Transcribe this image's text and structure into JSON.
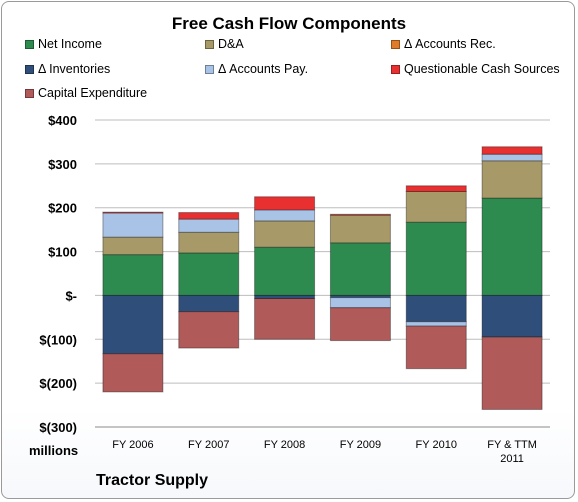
{
  "chart_data": {
    "type": "bar",
    "stacked": true,
    "title": "Free Cash Flow Components",
    "categories": [
      "FY 2006",
      "FY 2007",
      "FY 2008",
      "FY 2009",
      "FY 2010",
      "FY & TTM\n2011"
    ],
    "series": [
      {
        "name": "Net Income",
        "color": "#2e8b4f",
        "values": [
          93,
          97,
          110,
          120,
          167,
          222
        ]
      },
      {
        "name": "D&A",
        "color": "#a89968",
        "values": [
          40,
          47,
          60,
          63,
          70,
          85
        ]
      },
      {
        "name": "Δ Accounts Rec.",
        "color": "#e07b2a",
        "values": [
          0,
          0,
          0,
          0,
          0,
          0
        ]
      },
      {
        "name": "Δ Inventories",
        "color": "#2f4f7a",
        "values": [
          -133,
          -37,
          -7,
          -5,
          -60,
          -95
        ]
      },
      {
        "name": "Δ Accounts Pay.",
        "color": "#a9c3e6",
        "values": [
          55,
          30,
          25,
          -23,
          -10,
          15
        ]
      },
      {
        "name": "Questionable Cash Sources",
        "color": "#e83030",
        "values": [
          2,
          15,
          30,
          2,
          13,
          17
        ]
      },
      {
        "name": "Capital Expenditure",
        "color": "#b05a5a",
        "values": [
          -87,
          -83,
          -93,
          -75,
          -97,
          -165
        ]
      }
    ],
    "y_ticks": [
      "$400",
      "$300",
      "$200",
      "$100",
      "$-",
      "$(100)",
      "$(200)",
      "$(300)"
    ],
    "ylim": [
      -300,
      400
    ],
    "grid": true,
    "legend_position": "top",
    "units_label": "millions",
    "source_label": "Tractor Supply"
  }
}
